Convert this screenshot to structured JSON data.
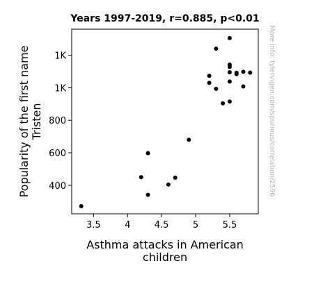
{
  "chart_data": {
    "type": "scatter",
    "title": "Years 1997-2019, r=0.885, p<0.01",
    "xlabel_lines": [
      "Asthma attacks in American",
      "children"
    ],
    "ylabel_lines": [
      "Popularity of the first name",
      "Tristen"
    ],
    "watermark": "More info: tylervigen.com/spurious/correlation/2596",
    "xlim": [
      3.18,
      5.92
    ],
    "ylim": [
      225,
      1360
    ],
    "x_ticks": [
      3.5,
      4,
      4.5,
      5,
      5.5
    ],
    "x_tick_labels": [
      "3.5",
      "4",
      "4.5",
      "5",
      "5.5"
    ],
    "y_ticks": [
      400,
      600,
      800,
      1000,
      1200
    ],
    "y_tick_labels": [
      "400",
      "600",
      "800",
      "1K",
      "1K"
    ],
    "point_color": "#000000",
    "grid": false,
    "points": [
      {
        "x": 3.32,
        "y": 272
      },
      {
        "x": 4.2,
        "y": 450
      },
      {
        "x": 4.3,
        "y": 598
      },
      {
        "x": 4.3,
        "y": 342
      },
      {
        "x": 4.6,
        "y": 405
      },
      {
        "x": 4.7,
        "y": 447
      },
      {
        "x": 4.9,
        "y": 680
      },
      {
        "x": 5.2,
        "y": 1073
      },
      {
        "x": 5.2,
        "y": 1030
      },
      {
        "x": 5.3,
        "y": 1240
      },
      {
        "x": 5.3,
        "y": 993
      },
      {
        "x": 5.4,
        "y": 904
      },
      {
        "x": 5.5,
        "y": 1305
      },
      {
        "x": 5.5,
        "y": 1142
      },
      {
        "x": 5.5,
        "y": 1128
      },
      {
        "x": 5.5,
        "y": 1095
      },
      {
        "x": 5.5,
        "y": 1038
      },
      {
        "x": 5.5,
        "y": 915
      },
      {
        "x": 5.6,
        "y": 1092
      },
      {
        "x": 5.6,
        "y": 1083
      },
      {
        "x": 5.7,
        "y": 1098
      },
      {
        "x": 5.7,
        "y": 1008
      },
      {
        "x": 5.8,
        "y": 1093
      }
    ]
  }
}
